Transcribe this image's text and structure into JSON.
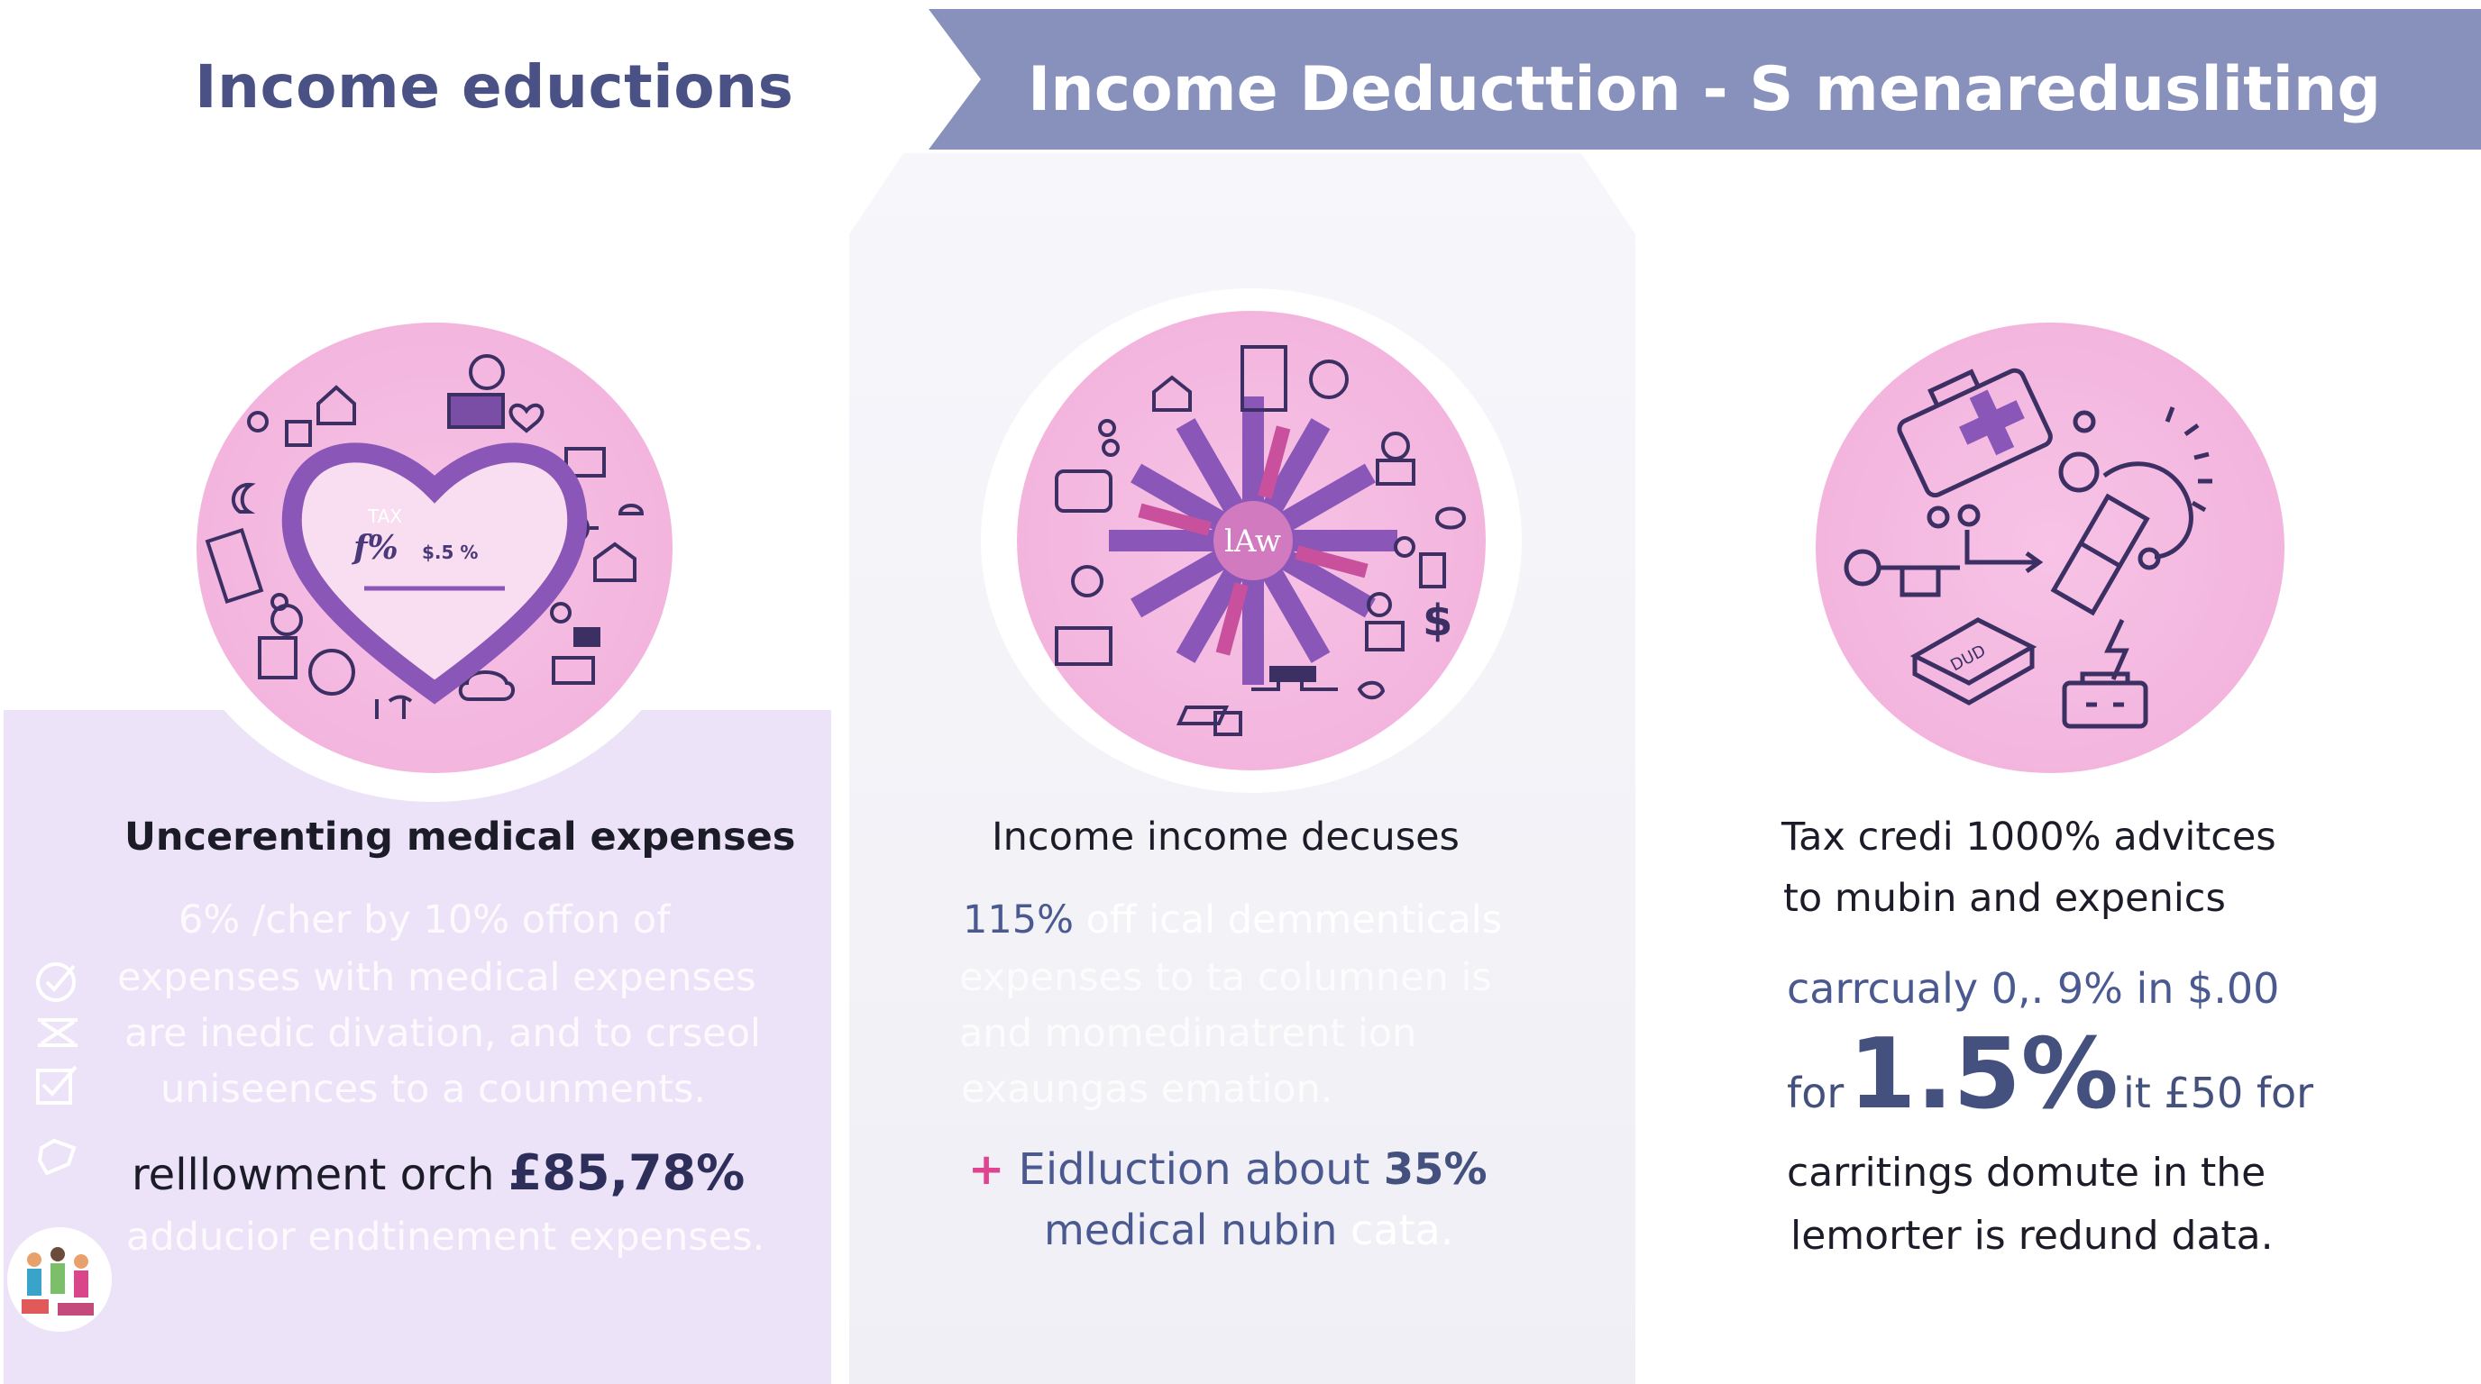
{
  "header": {
    "left_title": "Income eductions",
    "banner_title": "Income Deducttion - S menaredusliting"
  },
  "colors": {
    "banner": "#8791bb",
    "title": "#4a5184",
    "circle_pink": "#f3b5de",
    "icon_purple": "#7b4ea6",
    "accent_pink": "#e0438f",
    "left_panel": "#ece3f8"
  },
  "cards": [
    {
      "icon": "heart-tax-icon",
      "heart_label": "TAX",
      "heart_formula": "f%",
      "heart_rate": "$.5 %",
      "title": "Uncerenting medical expenses",
      "faded_lines": [
        "6% /cher by 10% offon of",
        "expenses with medical expenses",
        "are inedic divation, and to crseol",
        "uniseences to a counments."
      ],
      "highlight_prefix": "relllowment orch ",
      "highlight_value": "£85,78%",
      "footer_line": "adducior endtinement expenses."
    },
    {
      "icon": "law-burst-icon",
      "burst_label": "lAw",
      "title": "Income income decuses",
      "faded_first_prefix": "115%",
      "faded_first_rest": " off ical demmenticals",
      "faded_lines": [
        "expenses to ta columnen is",
        "and momedinatrent ion",
        "exaungas emation."
      ],
      "bullet_prefix": "Eidluction about ",
      "bullet_value": "35%",
      "bullet_line2": "medical nubin",
      "bullet_line2_faded": " cata."
    },
    {
      "icon": "medical-kit-icon",
      "title_lines": [
        "Tax credi 1000% advitces",
        "to mubin and expenics"
      ],
      "sub_line": "carrcualy 0,. 9% in $.00",
      "big_prefix": "for",
      "big_value": "1.5%",
      "big_suffix": "it £50 for",
      "end_lines": [
        "carritings domute in the",
        "lemorter is redund data."
      ]
    }
  ]
}
